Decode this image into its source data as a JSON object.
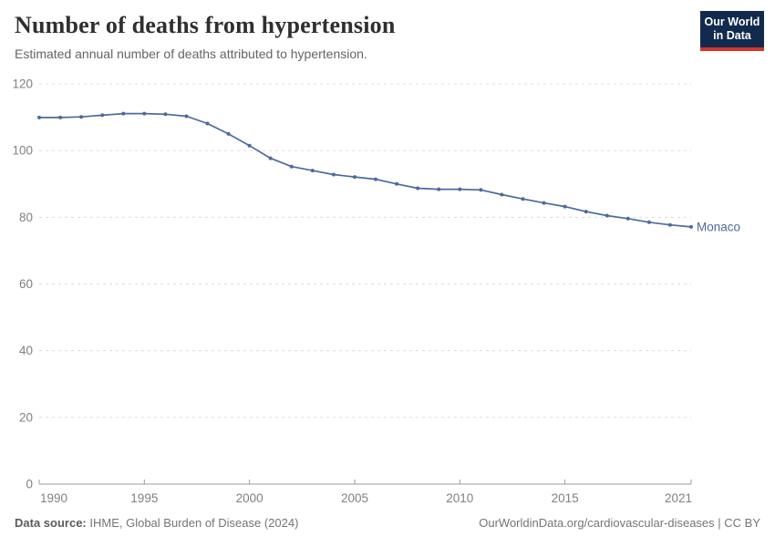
{
  "header": {
    "title": "Number of deaths from hypertension",
    "subtitle": "Estimated annual number of deaths attributed to hypertension."
  },
  "logo": {
    "line1": "Our World",
    "line2": "in Data",
    "bg_color": "#122a4e",
    "stripe_color": "#d2372c"
  },
  "chart_data": {
    "type": "line",
    "title": "Number of deaths from hypertension",
    "xlabel": "",
    "ylabel": "",
    "xlim": [
      1990,
      2021
    ],
    "ylim": [
      0,
      120
    ],
    "xticks": [
      1990,
      1995,
      2000,
      2005,
      2010,
      2015,
      2021
    ],
    "yticks": [
      0,
      20,
      40,
      60,
      80,
      100,
      120
    ],
    "grid": "horizontal-dashed",
    "legend_position": "end-of-line-label",
    "x": [
      1990,
      1991,
      1992,
      1993,
      1994,
      1995,
      1996,
      1997,
      1998,
      1999,
      2000,
      2001,
      2002,
      2003,
      2004,
      2005,
      2006,
      2007,
      2008,
      2009,
      2010,
      2011,
      2012,
      2013,
      2014,
      2015,
      2016,
      2017,
      2018,
      2019,
      2020,
      2021
    ],
    "series": [
      {
        "name": "Monaco",
        "color": "#4c6a9c",
        "values": [
          109.9,
          109.9,
          110.1,
          110.6,
          111.1,
          111.1,
          110.9,
          110.3,
          108.1,
          105.0,
          101.5,
          97.7,
          95.2,
          94.0,
          92.8,
          92.1,
          91.4,
          90.0,
          88.7,
          88.4,
          88.4,
          88.2,
          86.8,
          85.5,
          84.3,
          83.2,
          81.7,
          80.5,
          79.6,
          78.5,
          77.7,
          77.1
        ]
      }
    ],
    "entity_label": "Monaco"
  },
  "footer": {
    "source_label": "Data source:",
    "source_text": "IHME, Global Burden of Disease (2024)",
    "credit": "OurWorldinData.org/cardiovascular-diseases | CC BY"
  },
  "colors": {
    "axis_text": "#808080",
    "gridline": "#dcdcdc",
    "axis_line": "#9c9c9c",
    "title": "#2f2f2f",
    "subtitle": "#646464"
  }
}
